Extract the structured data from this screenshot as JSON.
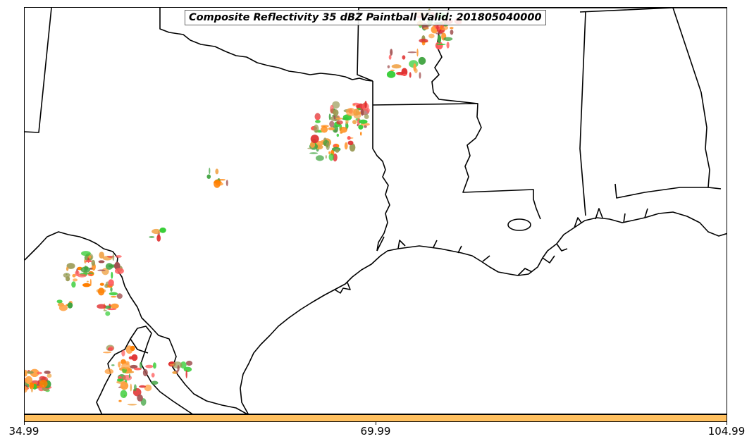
{
  "map": {
    "title": "Composite Reflectivity 35 dBZ Paintball Valid: 201805040000",
    "palette": [
      "#ff5a5a",
      "#ff7f00",
      "#ffa040",
      "#33cc33",
      "#3fa33f",
      "#9a9a55",
      "#a05050",
      "#e03030",
      "#f0a040"
    ]
  },
  "colorbar": {
    "color": "#ffc060",
    "tick_labels": [
      "34.99",
      "69.99",
      "104.99"
    ]
  }
}
